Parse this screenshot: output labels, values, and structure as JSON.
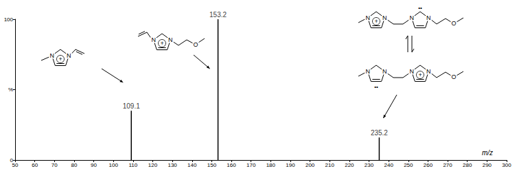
{
  "chart_data": {
    "type": "bar",
    "x": [
      109.1,
      153.2,
      235.2
    ],
    "values": [
      35,
      100,
      16
    ],
    "color": "#000000",
    "xlabel": "m/z",
    "xlim": [
      50,
      300
    ],
    "xticks": [
      50,
      60,
      70,
      80,
      90,
      100,
      110,
      120,
      130,
      140,
      150,
      160,
      170,
      180,
      190,
      200,
      210,
      220,
      230,
      240,
      250,
      260,
      270,
      280,
      290,
      300
    ],
    "ylim": [
      0,
      100
    ],
    "yticks": [
      0,
      {
        "value": 50,
        "label": "%"
      },
      100
    ],
    "grid": false,
    "annotations": [
      {
        "text": "109.1",
        "x": 109.1,
        "y": 35
      },
      {
        "text": "153.2",
        "x": 153.2,
        "y": 100
      },
      {
        "text": "235.2",
        "x": 235.2,
        "y": 16
      }
    ],
    "structures": [
      {
        "peak": 109.1,
        "forms": [
          {
            "atoms": [
              "N",
              "N"
            ],
            "charge": "+"
          }
        ]
      },
      {
        "peak": 153.2,
        "forms": [
          {
            "atoms": [
              "N",
              "N",
              "O"
            ],
            "charge": "+"
          }
        ]
      },
      {
        "peak": 235.2,
        "forms": [
          {
            "atoms": [
              "N",
              "N",
              "N",
              "N",
              "O"
            ],
            "charge": "+",
            "lone_pair": "••"
          },
          {
            "atoms": [
              "N",
              "N",
              "N",
              "N",
              "O"
            ],
            "charge": "+",
            "lone_pair": "••"
          }
        ]
      }
    ]
  }
}
